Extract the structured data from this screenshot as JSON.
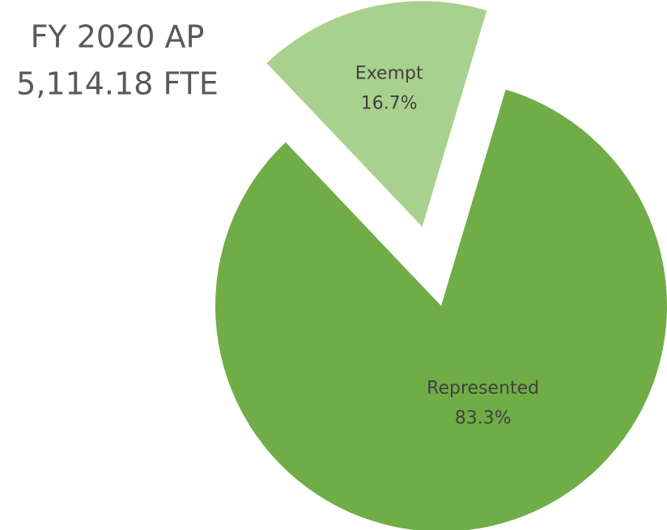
{
  "chart_data": {
    "type": "pie",
    "title": "FY 2020 AP",
    "subtitle": "5,114.18 FTE",
    "categories": [
      "Represented",
      "Exempt"
    ],
    "values": [
      83.3,
      16.7
    ],
    "value_labels": [
      "83.3%",
      "16.7%"
    ],
    "colors": [
      "#70ad47",
      "#a9d18e"
    ],
    "explode": [
      0,
      0.36
    ]
  }
}
